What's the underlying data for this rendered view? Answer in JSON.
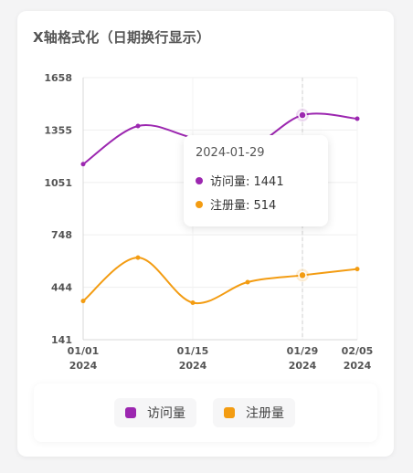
{
  "title": "X轴格式化（日期换行显示）",
  "chart_data": {
    "type": "line",
    "x": [
      "2024-01-01",
      "2024-01-08",
      "2024-01-15",
      "2024-01-22",
      "2024-01-29",
      "2024-02-05"
    ],
    "x_tick_labels": [
      {
        "date": "2024-01-01",
        "line1": "01/01",
        "line2": "2024"
      },
      {
        "date": "2024-01-15",
        "line1": "01/15",
        "line2": "2024"
      },
      {
        "date": "2024-01-29",
        "line1": "01/29",
        "line2": "2024"
      },
      {
        "date": "2024-02-05",
        "line1": "02/05",
        "line2": "2024"
      }
    ],
    "y_ticks": [
      141,
      444,
      748,
      1051,
      1355,
      1658
    ],
    "ylim": [
      141,
      1658
    ],
    "series": [
      {
        "name": "访问量",
        "color": "#9c27b0",
        "values": [
          1157,
          1378,
          1310,
          1250,
          1441,
          1420
        ]
      },
      {
        "name": "注册量",
        "color": "#f39c12",
        "values": [
          365,
          616,
          355,
          474,
          514,
          550
        ]
      }
    ],
    "highlight_x": "2024-01-29",
    "legend_position": "bottom"
  },
  "tooltip": {
    "date": "2024-01-29",
    "rows": [
      {
        "label": "访问量: 1441",
        "color": "#9c27b0"
      },
      {
        "label": "注册量: 514",
        "color": "#f39c12"
      }
    ]
  },
  "legend": [
    {
      "label": "访问量",
      "color": "#9c27b0"
    },
    {
      "label": "注册量",
      "color": "#f39c12"
    }
  ]
}
